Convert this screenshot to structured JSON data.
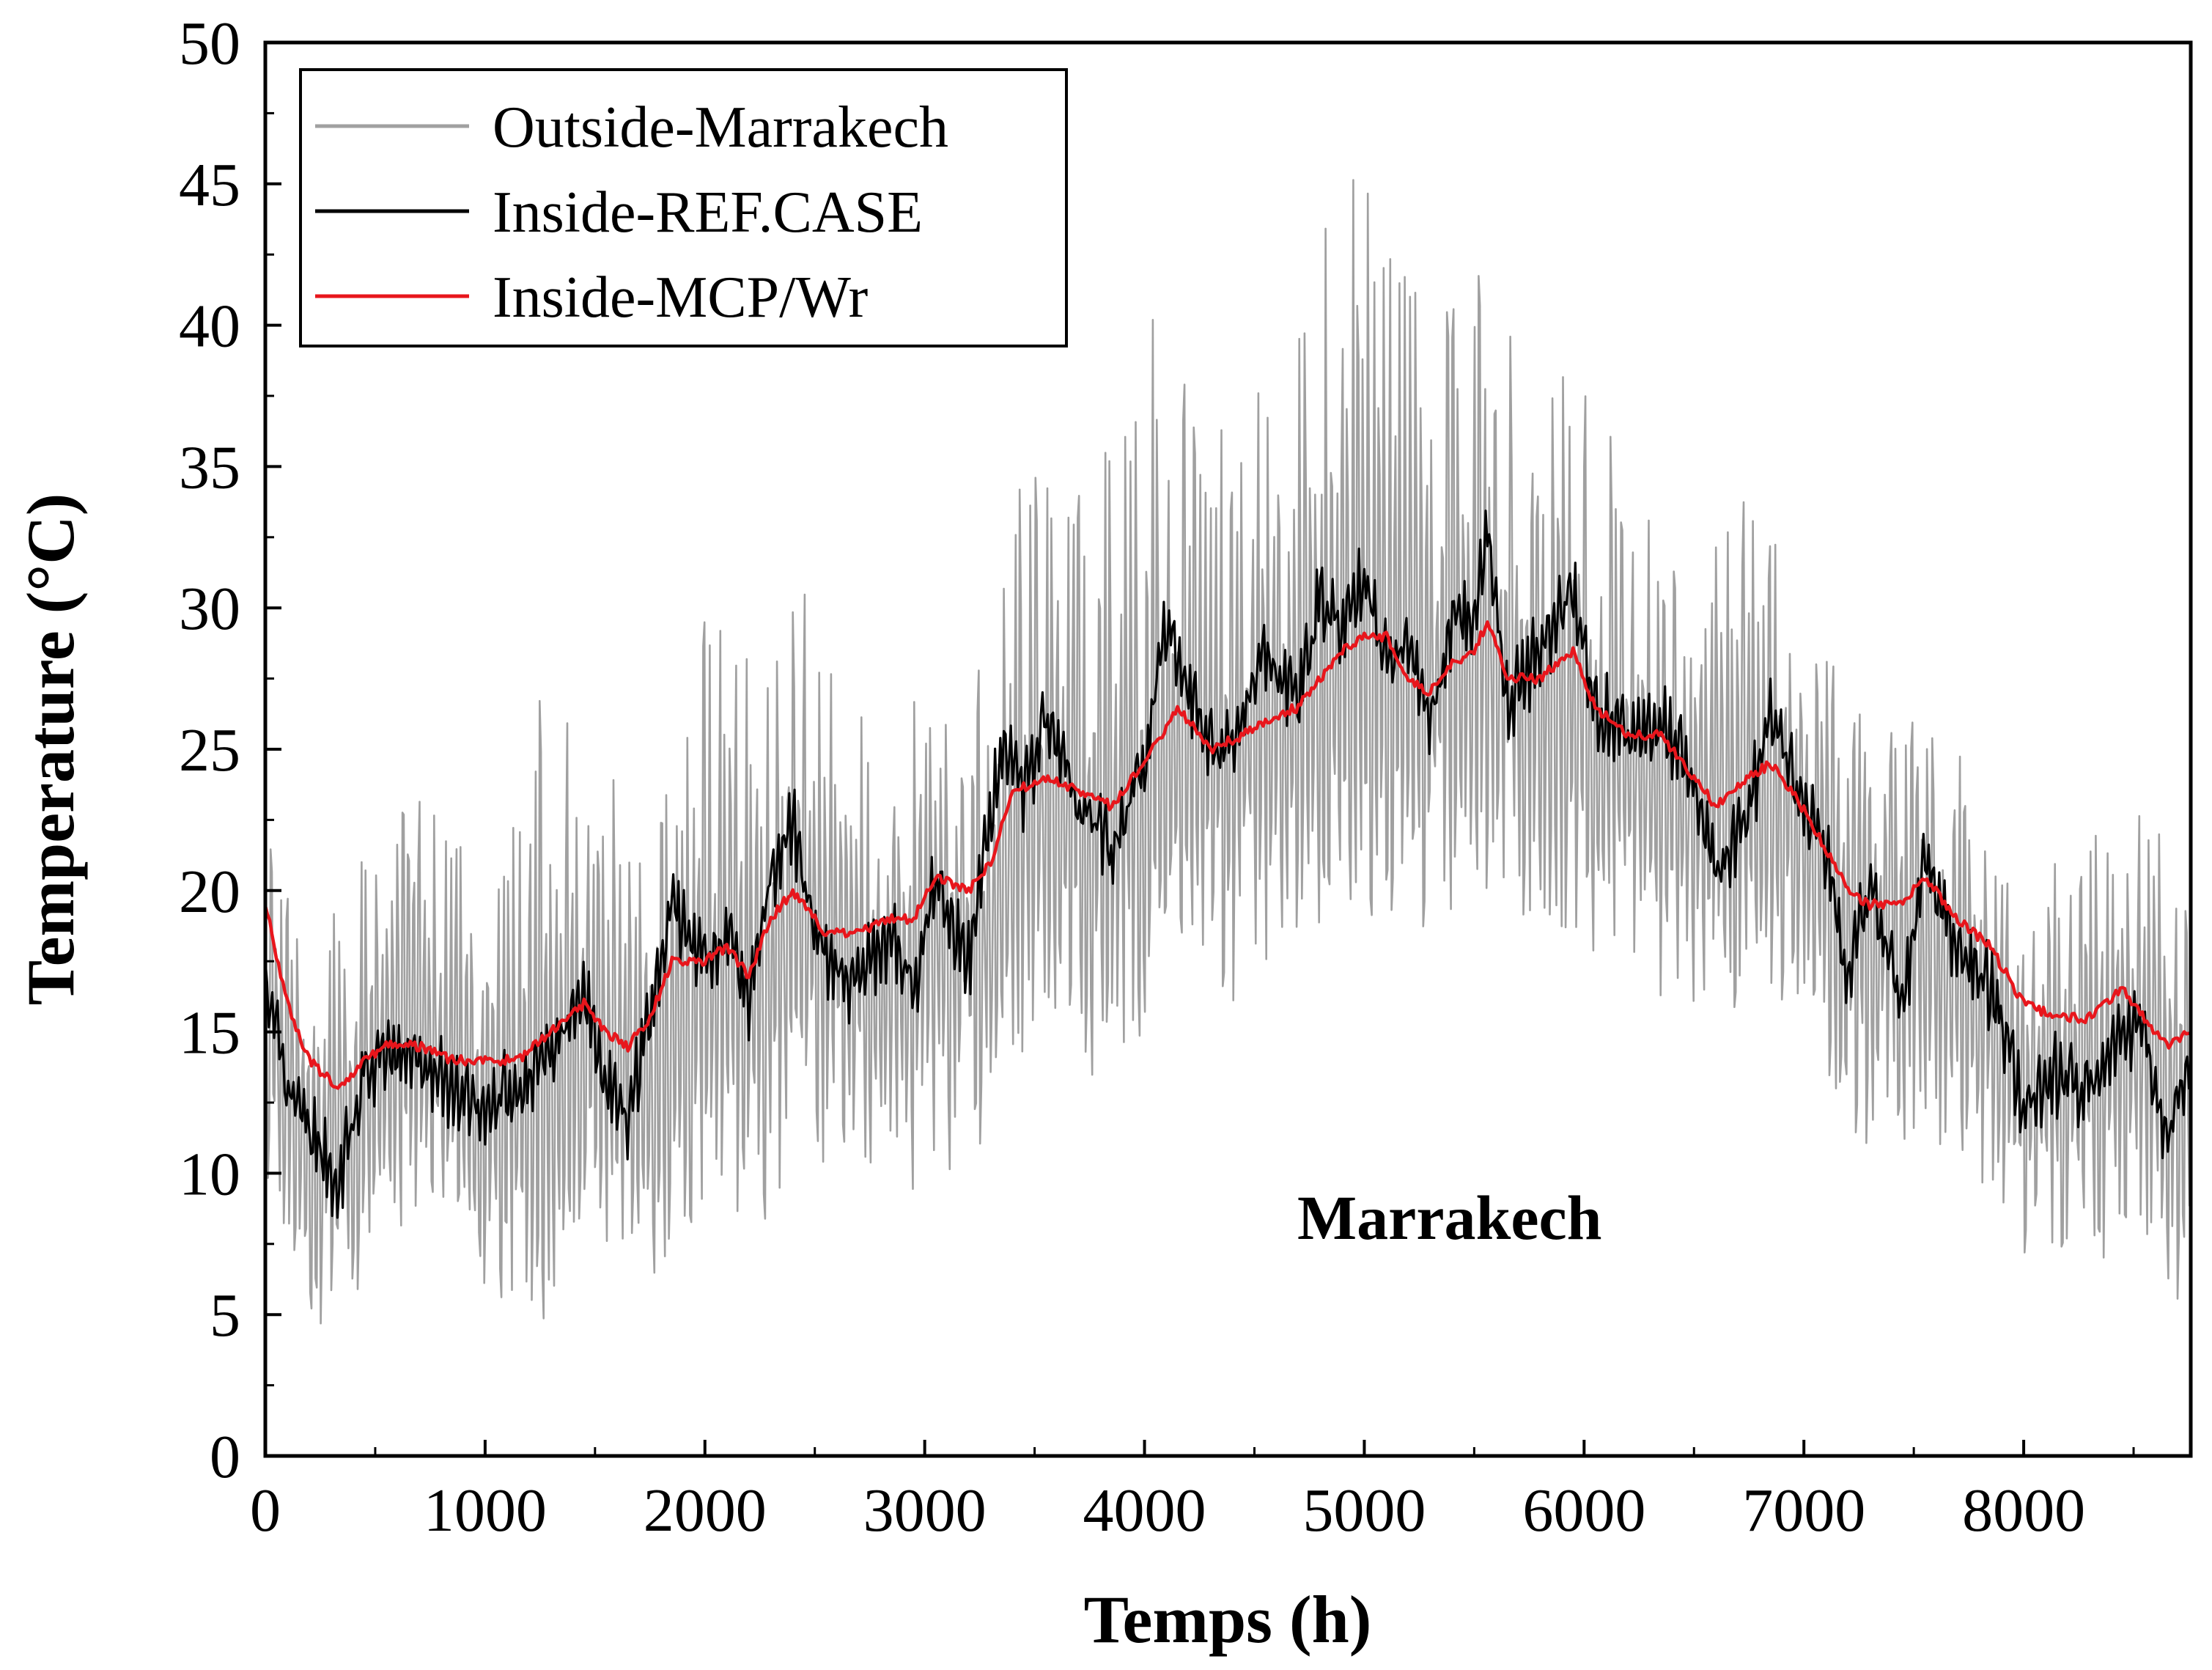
{
  "chart_data": {
    "type": "line",
    "title": "",
    "xlabel": "Temps (h)",
    "ylabel": "Temperature (°C)",
    "xlim": [
      0,
      8760
    ],
    "ylim": [
      0,
      50
    ],
    "x_ticks": [
      0,
      1000,
      2000,
      3000,
      4000,
      5000,
      6000,
      7000,
      8000
    ],
    "y_ticks": [
      0,
      5,
      10,
      15,
      20,
      25,
      30,
      35,
      40,
      45,
      50
    ],
    "annotation": "Marrakech",
    "legend_position": "top-left",
    "series": [
      {
        "name": "Outside-Marrakech",
        "color": "#a0a0a0",
        "x": [
          0,
          250,
          500,
          750,
          1000,
          1250,
          1500,
          1750,
          2000,
          2250,
          2500,
          2750,
          3000,
          3250,
          3500,
          3750,
          4000,
          4250,
          4500,
          4750,
          5000,
          5250,
          5500,
          5750,
          6000,
          6250,
          6500,
          6750,
          7000,
          7250,
          7500,
          7750,
          8000,
          8250,
          8500,
          8760
        ],
        "mean": [
          14,
          11,
          13,
          14,
          12,
          13,
          14,
          12,
          16,
          16,
          18,
          16,
          18,
          18,
          23,
          21,
          23,
          24,
          25,
          26,
          27,
          26,
          28,
          27,
          25,
          24,
          23,
          23,
          22,
          18,
          19,
          17,
          13,
          13,
          14,
          14
        ],
        "min": [
          10,
          4,
          6,
          6,
          6,
          4,
          8,
          6,
          9,
          8,
          10,
          9,
          9,
          11,
          14,
          13,
          15,
          16,
          16,
          18,
          19,
          18,
          20,
          19,
          18,
          17,
          14,
          16,
          15,
          11,
          10,
          10,
          6,
          7,
          7,
          5
        ],
        "max": [
          22,
          18,
          24,
          23,
          21,
          28,
          25,
          22,
          31,
          28,
          32,
          26,
          27,
          28,
          38,
          34,
          41,
          37,
          38,
          43,
          46,
          41,
          42,
          40,
          38,
          34,
          31,
          35,
          31,
          27,
          26,
          25,
          20,
          22,
          23,
          21
        ]
      },
      {
        "name": "Inside-REF.CASE",
        "color": "#000000",
        "x": [
          0,
          100,
          200,
          330,
          450,
          550,
          700,
          850,
          1000,
          1150,
          1250,
          1350,
          1450,
          1550,
          1650,
          1750,
          1850,
          2000,
          2100,
          2200,
          2300,
          2400,
          2500,
          2650,
          2850,
          2950,
          3050,
          3200,
          3350,
          3450,
          3550,
          3700,
          3850,
          4000,
          4100,
          4250,
          4350,
          4450,
          4550,
          4700,
          4800,
          4900,
          5000,
          5100,
          5200,
          5300,
          5400,
          5500,
          5560,
          5650,
          5800,
          5950,
          6050,
          6200,
          6350,
          6450,
          6600,
          6750,
          6850,
          6950,
          7100,
          7200,
          7300,
          7450,
          7550,
          7700,
          7850,
          8000,
          8150,
          8300,
          8450,
          8550,
          8650,
          8760
        ],
        "values": [
          17,
          13,
          11.5,
          9.5,
          13.5,
          14,
          14,
          13,
          12.5,
          13,
          14,
          15,
          16.5,
          13,
          12,
          15.5,
          19.5,
          17.5,
          18.5,
          16,
          20.5,
          22.5,
          18.5,
          16.5,
          18.5,
          16.5,
          20.5,
          17.5,
          25,
          23.5,
          26,
          23,
          21.5,
          24.5,
          29.5,
          26,
          24.5,
          26,
          28.5,
          26.5,
          30.5,
          29.5,
          31,
          28,
          28.5,
          26,
          29.5,
          29.5,
          32.5,
          26.5,
          28.5,
          30.5,
          26.5,
          25.5,
          26,
          25,
          20.5,
          23,
          26,
          24,
          21.5,
          17,
          20,
          16,
          21,
          18,
          16.5,
          12.5,
          13.5,
          13,
          15,
          15,
          11,
          14
        ]
      },
      {
        "name": "Inside-MCP/Wr",
        "color": "#e8161c",
        "x": [
          0,
          100,
          200,
          330,
          450,
          550,
          700,
          850,
          1000,
          1150,
          1300,
          1450,
          1550,
          1650,
          1750,
          1850,
          2000,
          2100,
          2200,
          2300,
          2400,
          2550,
          2700,
          2850,
          2950,
          3050,
          3200,
          3300,
          3400,
          3550,
          3700,
          3850,
          4000,
          4150,
          4300,
          4450,
          4550,
          4700,
          4800,
          4900,
          5000,
          5100,
          5200,
          5300,
          5400,
          5500,
          5560,
          5650,
          5800,
          5950,
          6050,
          6200,
          6350,
          6450,
          6600,
          6750,
          6850,
          6950,
          7100,
          7200,
          7300,
          7450,
          7550,
          7700,
          7850,
          8000,
          8150,
          8300,
          8450,
          8550,
          8650,
          8760
        ],
        "values": [
          19.5,
          16,
          14,
          13,
          14,
          14.5,
          14.5,
          14,
          14,
          14,
          15,
          16,
          15,
          14.5,
          15.5,
          17.5,
          17.5,
          18,
          17,
          19,
          20,
          18.5,
          18.5,
          19,
          19,
          20.5,
          20,
          21,
          23.5,
          24,
          23.5,
          23,
          24.5,
          26.5,
          25,
          25.5,
          26,
          26.5,
          27.5,
          28.5,
          29,
          29,
          27.5,
          27,
          28,
          28.5,
          29.5,
          27.5,
          27.5,
          28.5,
          26.5,
          25.5,
          25.5,
          24.5,
          23,
          24,
          24.5,
          23.5,
          21.5,
          20,
          19.5,
          19.5,
          20.5,
          19,
          18,
          16,
          15.5,
          15.5,
          16.5,
          15.5,
          14.5,
          15
        ]
      }
    ]
  }
}
